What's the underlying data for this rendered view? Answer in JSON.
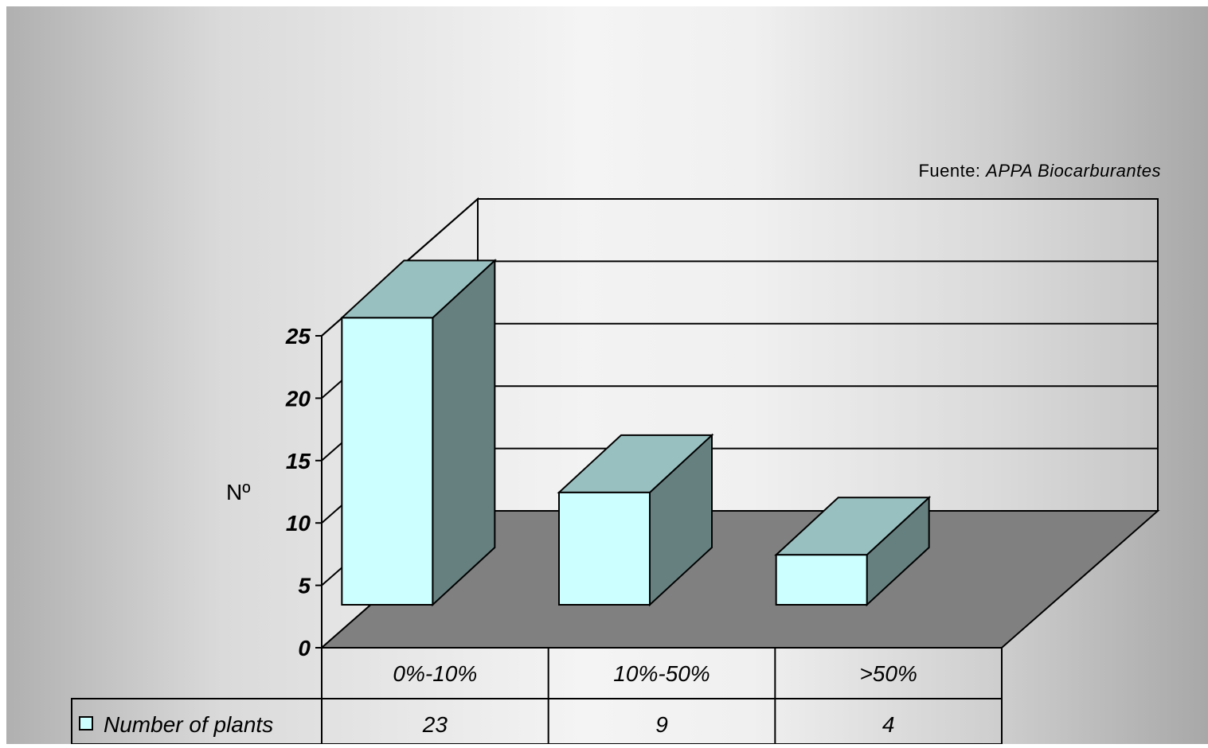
{
  "source": {
    "prefix": "Fuente: ",
    "name": "APPA Biocarburantes"
  },
  "chart_data": {
    "type": "bar",
    "categories": [
      "0%-10%",
      "10%-50%",
      ">50%"
    ],
    "series": [
      {
        "name": "Number of plants",
        "values": [
          23,
          9,
          4
        ]
      }
    ],
    "title": "",
    "xlabel": "",
    "ylabel": "Nº",
    "ylim": [
      0,
      25
    ],
    "yticks": [
      0,
      5,
      10,
      15,
      20,
      25
    ],
    "grid": true,
    "legend": "bottom-left",
    "three_d": true,
    "data_table": true,
    "colors": {
      "bar_front": "#ccffff",
      "bar_top": "#99c0c0",
      "bar_side": "#668080",
      "floor": "#808080",
      "walls": "#f2f2f2"
    }
  }
}
